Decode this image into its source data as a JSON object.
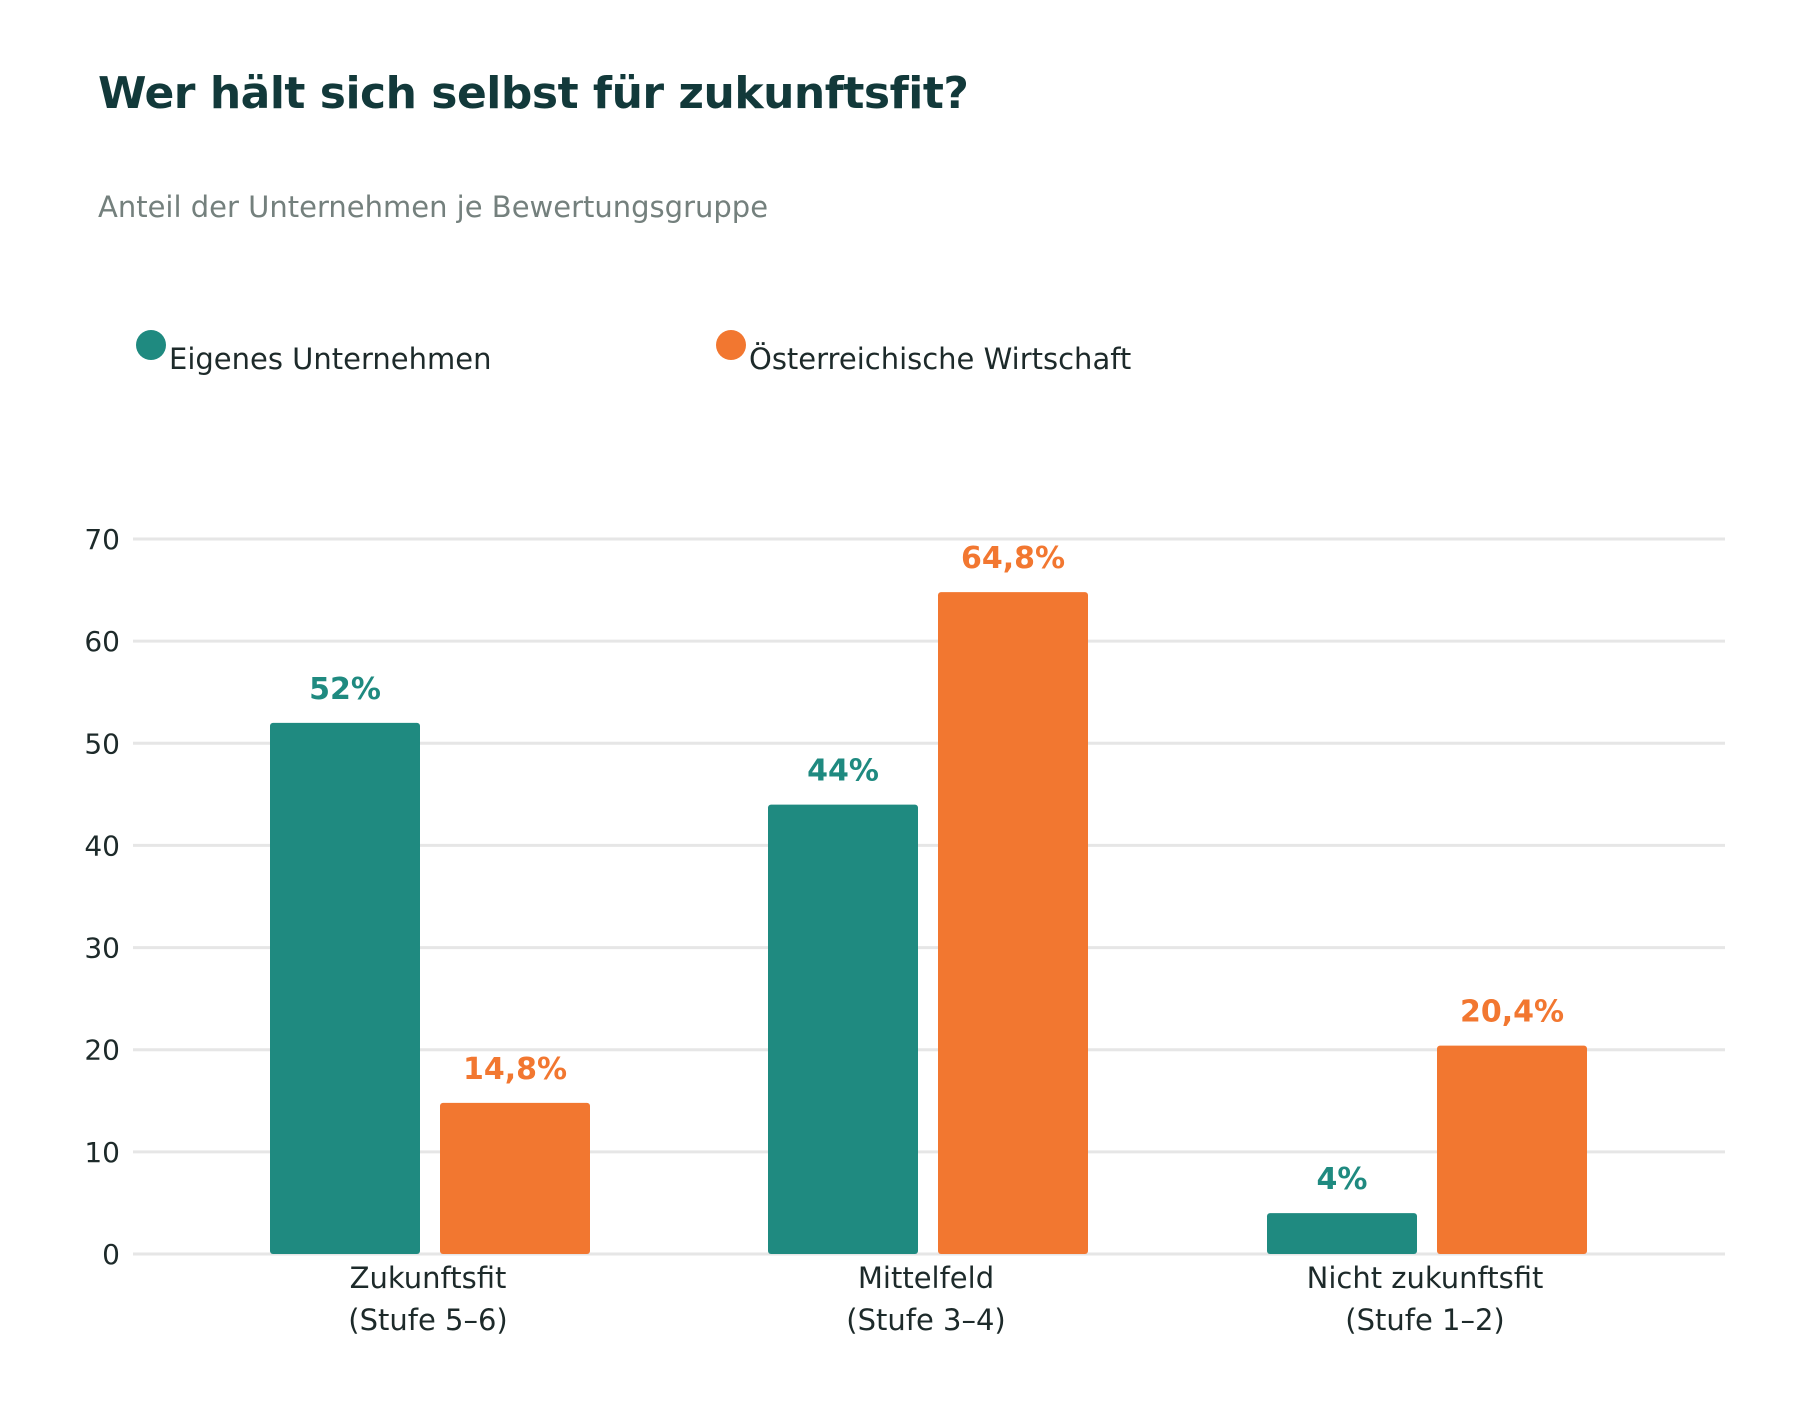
{
  "title": "Wer hält sich selbst für zukunftsfit?",
  "subtitle": "Anteil der Unternehmen je Bewertungsgruppe",
  "colors": {
    "teal": "#1f8a80",
    "orange": "#f27730",
    "grid": "#e6e6e6"
  },
  "legend": [
    {
      "label": "Eigenes Unternehmen",
      "color": "#1f8a80"
    },
    {
      "label": "Österreichische Wirtschaft",
      "color": "#f27730"
    }
  ],
  "chart_data": {
    "type": "bar",
    "title": "Wer hält sich selbst für zukunftsfit?",
    "subtitle": "Anteil der Unternehmen je Bewertungsgruppe",
    "categories": [
      [
        "Zukunftsfit",
        "(Stufe 5–6)"
      ],
      [
        "Mittelfeld",
        "(Stufe 3–4)"
      ],
      [
        "Nicht zukunftsfit",
        "(Stufe 1–2)"
      ]
    ],
    "series": [
      {
        "name": "Eigenes Unternehmen",
        "color": "#1f8a80",
        "values": [
          52,
          44,
          4
        ],
        "labels": [
          "52%",
          "44%",
          "4%"
        ]
      },
      {
        "name": "Österreichische Wirtschaft",
        "color": "#f27730",
        "values": [
          14.8,
          64.8,
          20.4
        ],
        "labels": [
          "14,8%",
          "64,8%",
          "20,4%"
        ]
      }
    ],
    "ylim": [
      0,
      70
    ],
    "yticks": [
      0,
      10,
      20,
      30,
      40,
      50,
      60,
      70
    ],
    "grid": true,
    "legend_position": "top-left",
    "xlabel": "",
    "ylabel": ""
  }
}
